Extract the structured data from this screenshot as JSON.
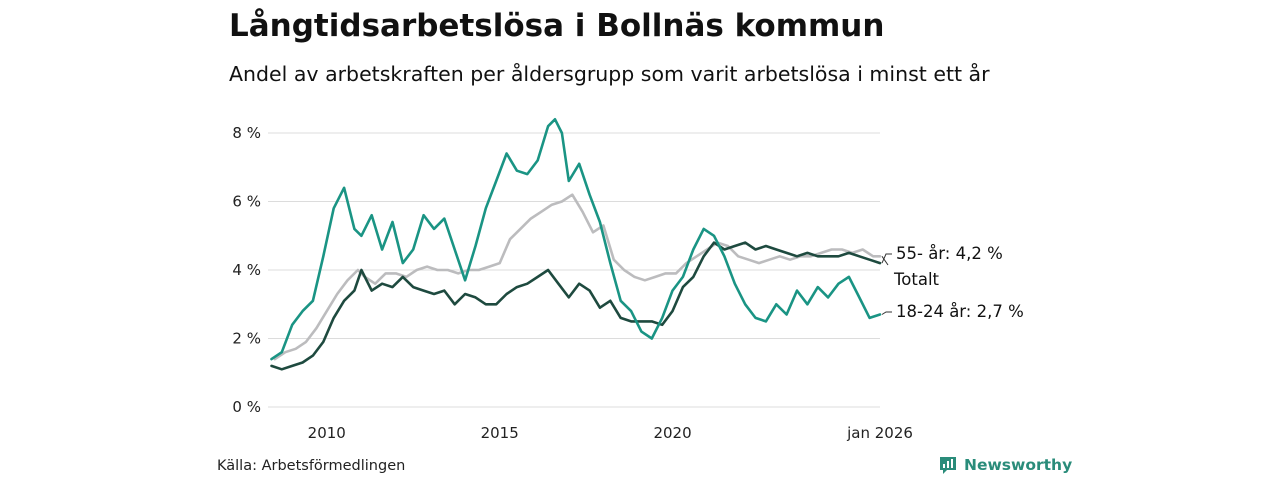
{
  "title": "Långtidsarbetslösa i Bollnäs kommun",
  "subtitle": "Andel av arbetskraften per åldersgrupp som varit arbetslösa i minst ett år",
  "source": "Källa: Arbetsförmedlingen",
  "brand": "Newsworthy",
  "colors": {
    "youth": "#1a9484",
    "senior": "#1e4a3f",
    "total": "#bcbcbe",
    "grid": "#dcdcdc",
    "brand": "#2a8c7a"
  },
  "chart_data": {
    "type": "line",
    "title": "Långtidsarbetslösa i Bollnäs kommun",
    "xlabel": "",
    "ylabel": "",
    "xlim": [
      2008.3,
      2026.0
    ],
    "ylim": [
      0,
      8
    ],
    "y_ticks": [
      0,
      2,
      4,
      6,
      8
    ],
    "y_tick_labels": [
      "0 %",
      "2 %",
      "4 %",
      "6 %",
      "8 %"
    ],
    "x_ticks": [
      2010,
      2015,
      2020,
      2026.0
    ],
    "x_tick_labels": [
      "2010",
      "2015",
      "2020",
      "jan 2026"
    ],
    "grid": true,
    "series": [
      {
        "key": "total",
        "name": "Totalt",
        "end_label": "Totalt",
        "x": [
          2008.5,
          2008.8,
          2009.1,
          2009.4,
          2009.7,
          2010.0,
          2010.3,
          2010.6,
          2010.9,
          2011.1,
          2011.4,
          2011.7,
          2012.0,
          2012.3,
          2012.6,
          2012.9,
          2013.2,
          2013.5,
          2013.8,
          2014.1,
          2014.4,
          2014.7,
          2015.0,
          2015.3,
          2015.6,
          2015.9,
          2016.2,
          2016.5,
          2016.8,
          2017.1,
          2017.4,
          2017.7,
          2018.0,
          2018.3,
          2018.6,
          2018.9,
          2019.2,
          2019.5,
          2019.8,
          2020.1,
          2020.4,
          2020.7,
          2021.0,
          2021.3,
          2021.6,
          2021.9,
          2022.2,
          2022.5,
          2022.8,
          2023.1,
          2023.4,
          2023.7,
          2024.0,
          2024.3,
          2024.6,
          2024.9,
          2025.2,
          2025.5,
          2025.8,
          2026.0
        ],
        "y": [
          1.4,
          1.6,
          1.7,
          1.9,
          2.3,
          2.8,
          3.3,
          3.7,
          4.0,
          3.8,
          3.6,
          3.9,
          3.9,
          3.8,
          4.0,
          4.1,
          4.0,
          4.0,
          3.9,
          4.0,
          4.0,
          4.1,
          4.2,
          4.9,
          5.2,
          5.5,
          5.7,
          5.9,
          6.0,
          6.2,
          5.7,
          5.1,
          5.3,
          4.3,
          4.0,
          3.8,
          3.7,
          3.8,
          3.9,
          3.9,
          4.2,
          4.4,
          4.6,
          4.8,
          4.7,
          4.4,
          4.3,
          4.2,
          4.3,
          4.4,
          4.3,
          4.4,
          4.4,
          4.5,
          4.6,
          4.6,
          4.5,
          4.6,
          4.4,
          4.4
        ]
      },
      {
        "key": "senior",
        "name": "55- år",
        "end_label": "55- år: 4,2 %",
        "x": [
          2008.4,
          2008.7,
          2009.0,
          2009.3,
          2009.6,
          2009.9,
          2010.2,
          2010.5,
          2010.8,
          2011.0,
          2011.3,
          2011.6,
          2011.9,
          2012.2,
          2012.5,
          2012.8,
          2013.1,
          2013.4,
          2013.7,
          2014.0,
          2014.3,
          2014.6,
          2014.9,
          2015.2,
          2015.5,
          2015.8,
          2016.1,
          2016.4,
          2016.7,
          2017.0,
          2017.3,
          2017.6,
          2017.9,
          2018.2,
          2018.5,
          2018.8,
          2019.1,
          2019.4,
          2019.7,
          2020.0,
          2020.3,
          2020.6,
          2020.9,
          2021.2,
          2021.5,
          2021.8,
          2022.1,
          2022.4,
          2022.7,
          2023.0,
          2023.3,
          2023.6,
          2023.9,
          2024.2,
          2024.5,
          2024.8,
          2025.1,
          2025.4,
          2025.7,
          2026.0
        ],
        "y": [
          1.2,
          1.1,
          1.2,
          1.3,
          1.5,
          1.9,
          2.6,
          3.1,
          3.4,
          4.0,
          3.4,
          3.6,
          3.5,
          3.8,
          3.5,
          3.4,
          3.3,
          3.4,
          3.0,
          3.3,
          3.2,
          3.0,
          3.0,
          3.3,
          3.5,
          3.6,
          3.8,
          4.0,
          3.6,
          3.2,
          3.6,
          3.4,
          2.9,
          3.1,
          2.6,
          2.5,
          2.5,
          2.5,
          2.4,
          2.8,
          3.5,
          3.8,
          4.4,
          4.8,
          4.6,
          4.7,
          4.8,
          4.6,
          4.7,
          4.6,
          4.5,
          4.4,
          4.5,
          4.4,
          4.4,
          4.4,
          4.5,
          4.4,
          4.3,
          4.2
        ]
      },
      {
        "key": "youth",
        "name": "18-24 år",
        "end_label": "18-24 år: 2,7 %",
        "x": [
          2008.4,
          2008.7,
          2009.0,
          2009.3,
          2009.6,
          2009.9,
          2010.2,
          2010.5,
          2010.8,
          2011.0,
          2011.3,
          2011.6,
          2011.9,
          2012.2,
          2012.5,
          2012.8,
          2013.1,
          2013.4,
          2013.7,
          2014.0,
          2014.3,
          2014.6,
          2014.9,
          2015.2,
          2015.5,
          2015.8,
          2016.1,
          2016.4,
          2016.6,
          2016.8,
          2017.0,
          2017.3,
          2017.6,
          2017.9,
          2018.2,
          2018.5,
          2018.8,
          2019.1,
          2019.4,
          2019.7,
          2020.0,
          2020.3,
          2020.6,
          2020.9,
          2021.2,
          2021.5,
          2021.8,
          2022.1,
          2022.4,
          2022.7,
          2023.0,
          2023.3,
          2023.6,
          2023.9,
          2024.2,
          2024.5,
          2024.8,
          2025.1,
          2025.4,
          2025.7,
          2026.0
        ],
        "y": [
          1.4,
          1.6,
          2.4,
          2.8,
          3.1,
          4.4,
          5.8,
          6.4,
          5.2,
          5.0,
          5.6,
          4.6,
          5.4,
          4.2,
          4.6,
          5.6,
          5.2,
          5.5,
          4.6,
          3.7,
          4.7,
          5.8,
          6.6,
          7.4,
          6.9,
          6.8,
          7.2,
          8.2,
          8.4,
          8.0,
          6.6,
          7.1,
          6.2,
          5.4,
          4.2,
          3.1,
          2.8,
          2.2,
          2.0,
          2.6,
          3.4,
          3.8,
          4.6,
          5.2,
          5.0,
          4.4,
          3.6,
          3.0,
          2.6,
          2.5,
          3.0,
          2.7,
          3.4,
          3.0,
          3.5,
          3.2,
          3.6,
          3.8,
          3.2,
          2.6,
          2.7
        ]
      }
    ]
  }
}
